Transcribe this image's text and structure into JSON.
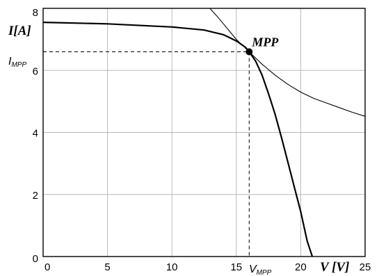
{
  "chart_data": {
    "type": "line",
    "xlabel": "V [V]",
    "ylabel": "I[A]",
    "xlim": [
      0,
      25
    ],
    "ylim": [
      0,
      8
    ],
    "x_ticks": [
      "0",
      "5",
      "10",
      "15",
      "20",
      "25"
    ],
    "y_ticks": [
      "0",
      "2",
      "4",
      "6",
      "8"
    ],
    "grid": true,
    "series": [
      {
        "role": "iv-curve",
        "points": [
          [
            0,
            7.55
          ],
          [
            5,
            7.5
          ],
          [
            10,
            7.4
          ],
          [
            12.5,
            7.3
          ],
          [
            14,
            7.15
          ],
          [
            15,
            6.95
          ],
          [
            15.7,
            6.75
          ],
          [
            16,
            6.6
          ],
          [
            16.5,
            6.3
          ],
          [
            17,
            5.85
          ],
          [
            17.5,
            5.25
          ],
          [
            18,
            4.6
          ],
          [
            18.5,
            3.85
          ],
          [
            19,
            3.05
          ],
          [
            19.5,
            2.25
          ],
          [
            20,
            1.45
          ],
          [
            20.5,
            0.5
          ],
          [
            20.9,
            0
          ]
        ]
      },
      {
        "role": "power-hyperbola",
        "points": [
          [
            12.95,
            8.0
          ],
          [
            13.5,
            7.75
          ],
          [
            14,
            7.5
          ],
          [
            14.5,
            7.25
          ],
          [
            15,
            7.0
          ],
          [
            15.5,
            6.8
          ],
          [
            16,
            6.6
          ],
          [
            17,
            6.2
          ],
          [
            18,
            5.85
          ],
          [
            19,
            5.55
          ],
          [
            20,
            5.3
          ],
          [
            21,
            5.1
          ],
          [
            22,
            4.95
          ],
          [
            23,
            4.8
          ],
          [
            24,
            4.65
          ],
          [
            25,
            4.52
          ]
        ]
      }
    ],
    "mpp": {
      "x": 16,
      "y": 6.6,
      "label": "MPP",
      "x_marker_main": "V",
      "x_marker_sub": "MPP",
      "y_marker_main": "I",
      "y_marker_sub": "MPP"
    }
  }
}
